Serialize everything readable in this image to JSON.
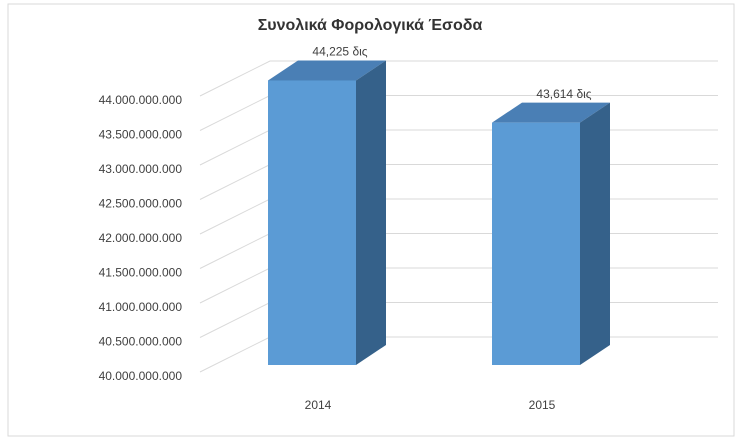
{
  "chart_data": {
    "type": "bar3d",
    "title": "Συνολικά Φορολογικά Έσοδα",
    "categories": [
      "2014",
      "2015"
    ],
    "values": [
      44225000000,
      43614000000
    ],
    "value_labels": [
      "44,225 δις",
      "43,614 δις"
    ],
    "color": "#5b9bd5",
    "ylim": [
      40000000000,
      44000000000
    ],
    "yticks": [
      {
        "value": 40000000000,
        "label": "40.000.000.000"
      },
      {
        "value": 40500000000,
        "label": "40.500.000.000"
      },
      {
        "value": 41000000000,
        "label": "41.000.000.000"
      },
      {
        "value": 41500000000,
        "label": "41.500.000.000"
      },
      {
        "value": 42000000000,
        "label": "42.000.000.000"
      },
      {
        "value": 42500000000,
        "label": "42.500.000.000"
      },
      {
        "value": 43000000000,
        "label": "43.000.000.000"
      },
      {
        "value": 43500000000,
        "label": "43.500.000.000"
      },
      {
        "value": 44000000000,
        "label": "44.000.000.000"
      }
    ],
    "grid": true
  }
}
